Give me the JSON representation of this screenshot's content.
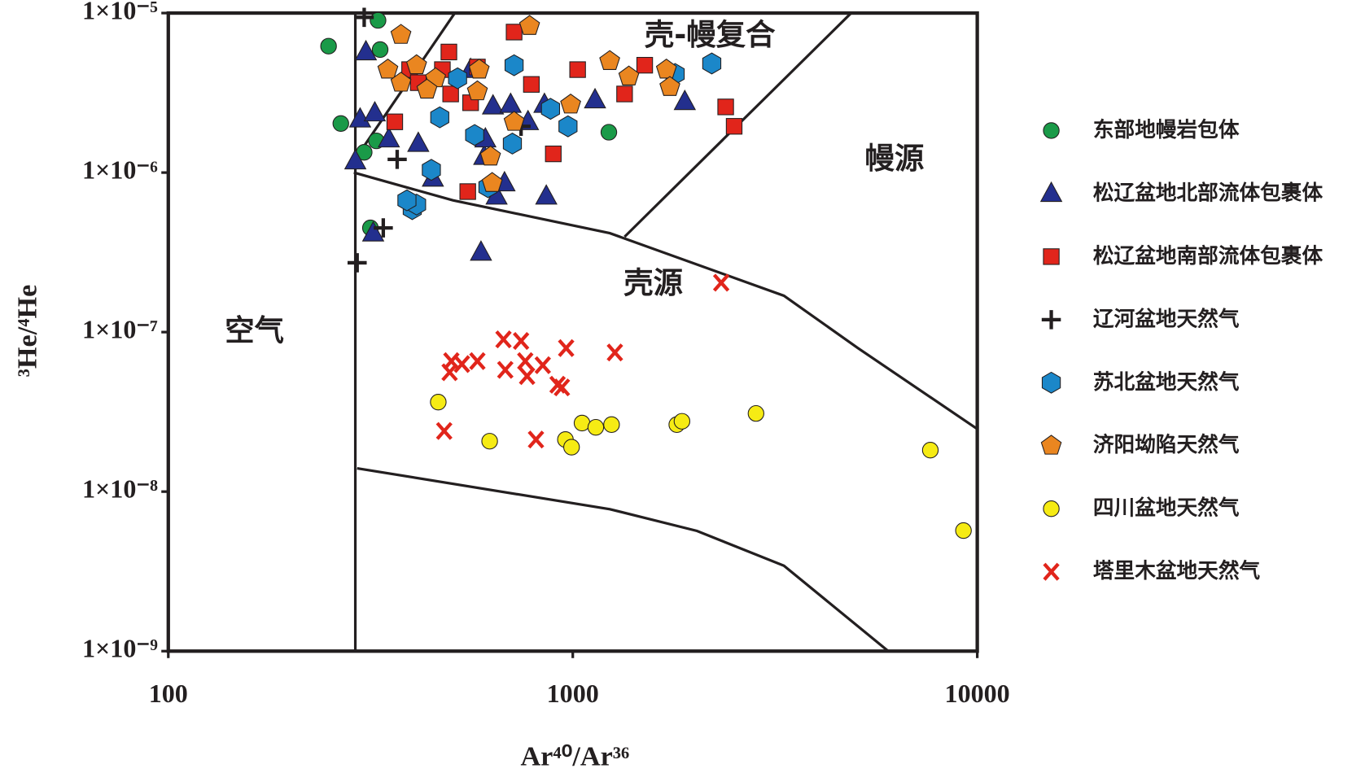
{
  "chart_data": {
    "type": "scatter",
    "x_label": "Ar⁴⁰/Ar³⁶",
    "y_label": "³He/⁴He",
    "log_x": true,
    "log_y": true,
    "xlim": [
      100,
      10000
    ],
    "xticks": [
      100,
      1000,
      10000
    ],
    "ylim": [
      1e-09,
      1e-05
    ],
    "yticks": [
      {
        "value": 1e-05,
        "label": "1×10⁻⁵"
      },
      {
        "value": 1e-06,
        "label": "1×10⁻⁶"
      },
      {
        "value": 1e-07,
        "label": "1×10⁻⁷"
      },
      {
        "value": 1e-08,
        "label": "1×10⁻⁸"
      },
      {
        "value": 1e-09,
        "label": "1×10⁻⁹"
      }
    ],
    "legend": "right",
    "annotations": [
      "壳-幔复合",
      "幔源",
      "壳源",
      "空气"
    ],
    "boundary_lines": [
      {
        "x": [
          290,
          290
        ],
        "y": [
          1e-05,
          1e-09
        ]
      },
      {
        "x": [
          287.5,
          510.8
        ],
        "y": [
          1.18e-06,
          1e-05
        ]
      },
      {
        "x": [
          287.5,
          505.5,
          1235,
          3327,
          5070,
          10000
        ],
        "y": [
          1e-06,
          6.7e-07,
          4.17e-07,
          1.69e-07,
          7.94e-08,
          2.47e-08
        ]
      },
      {
        "x": [
          1343,
          4877
        ],
        "y": [
          3.96e-07,
          1e-05
        ]
      },
      {
        "x": [
          293,
          1235,
          2028,
          3327,
          6026
        ],
        "y": [
          1.4e-08,
          7.76e-09,
          5.67e-09,
          3.43e-09,
          1e-09
        ]
      }
    ],
    "series": [
      {
        "name": "东部地幔岩包体",
        "marker": "circle",
        "color": "#1a9a48",
        "x": [
          249,
          330,
          334,
          267,
          305,
          327,
          316,
          1228
        ],
        "y": [
          6.2e-06,
          9e-06,
          5.9e-06,
          2.03e-06,
          1.34e-06,
          1.58e-06,
          4.5e-07,
          1.79e-06
        ]
      },
      {
        "name": "松辽盆地北部流体包裹体",
        "marker": "triangle",
        "color": "#232f8e",
        "x": [
          308,
          298,
          324,
          351,
          290,
          321,
          415,
          451,
          559,
          635,
          604,
          608,
          702,
          678,
          648,
          593,
          851,
          860,
          1135,
          1892,
          775
        ],
        "y": [
          5.7e-06,
          2.16e-06,
          2.36e-06,
          1.62e-06,
          1.18e-06,
          4.17e-07,
          1.52e-06,
          9.2e-07,
          4.42e-06,
          2.61e-06,
          1.26e-06,
          1.62e-06,
          2.67e-06,
          8.6e-07,
          7.1e-07,
          3.16e-07,
          2.67e-06,
          7.1e-07,
          2.85e-06,
          2.78e-06,
          2.08e-06
        ]
      },
      {
        "name": "松辽盆地南部流体包裹体",
        "marker": "square",
        "color": "#e1251b",
        "x": [
          716,
          494,
          476,
          395,
          415,
          581,
          499,
          559,
          790,
          1028,
          1506,
          1343,
          2388,
          2506,
          895,
          363,
          550
        ],
        "y": [
          7.6e-06,
          5.7e-06,
          4.42e-06,
          4.42e-06,
          3.66e-06,
          4.59e-06,
          3.11e-06,
          2.74e-06,
          3.57e-06,
          4.42e-06,
          4.71e-06,
          3.11e-06,
          2.58e-06,
          1.95e-06,
          1.31e-06,
          2.08e-06,
          7.6e-07
        ]
      },
      {
        "name": "辽河盆地天然气",
        "marker": "plus",
        "color": "#231f20",
        "x": [
          305,
          745,
          368,
          340,
          293
        ],
        "y": [
          9.4e-06,
          1.95e-06,
          1.21e-06,
          4.5e-07,
          2.72e-07
        ]
      },
      {
        "name": "苏北盆地天然气",
        "marker": "hexagon",
        "color": "#1b87c9",
        "x": [
          716,
          469,
          447,
          401,
          411,
          519,
          572,
          617,
          709,
          881,
          973,
          1791,
          2206,
          389
        ],
        "y": [
          4.71e-06,
          2.22e-06,
          1.04e-06,
          5.9e-07,
          6.3e-07,
          3.9e-06,
          1.72e-06,
          8.1e-07,
          1.52e-06,
          2.51e-06,
          1.95e-06,
          4.15e-06,
          4.83e-06,
          6.7e-07
        ]
      },
      {
        "name": "济阳坳陷天然气",
        "marker": "pentagon",
        "color": "#ea8620",
        "x": [
          782,
          376,
          349,
          411,
          376,
          458,
          436,
          587,
          581,
          1234,
          1376,
          1704,
          1738,
          988,
          716,
          626,
          632
        ],
        "y": [
          8.3e-06,
          7.3e-06,
          4.42e-06,
          4.71e-06,
          3.66e-06,
          3.9e-06,
          3.31e-06,
          4.42e-06,
          3.23e-06,
          5e-06,
          4e-06,
          4.42e-06,
          3.44e-06,
          2.67e-06,
          2.08e-06,
          1.26e-06,
          8.6e-07
        ]
      },
      {
        "name": "四川盆地天然气",
        "marker": "circle",
        "color": "#f6eb14",
        "x": [
          465,
          623,
          959,
          993,
          1054,
          1140,
          1247,
          1808,
          1862,
          2838,
          7656,
          9245
        ],
        "y": [
          3.64e-08,
          2.07e-08,
          2.12e-08,
          1.9e-08,
          2.69e-08,
          2.53e-08,
          2.63e-08,
          2.63e-08,
          2.76e-08,
          3.09e-08,
          1.82e-08,
          5.7e-09
        ]
      },
      {
        "name": "塔里木盆地天然气",
        "marker": "x",
        "color": "#e1251b",
        "x": [
          2328,
          674,
          745,
          963,
          1271,
          501,
          532,
          581,
          496,
          681,
          763,
          771,
          843,
          917,
          940,
          481,
          811
        ],
        "y": [
          2.04e-07,
          9e-08,
          8.8e-08,
          7.94e-08,
          7.45e-08,
          6.58e-08,
          6.3e-08,
          6.58e-08,
          5.6e-08,
          5.8e-08,
          6.58e-08,
          5.3e-08,
          6.2e-08,
          4.68e-08,
          4.5e-08,
          2.4e-08,
          2.12e-08
        ]
      }
    ]
  }
}
